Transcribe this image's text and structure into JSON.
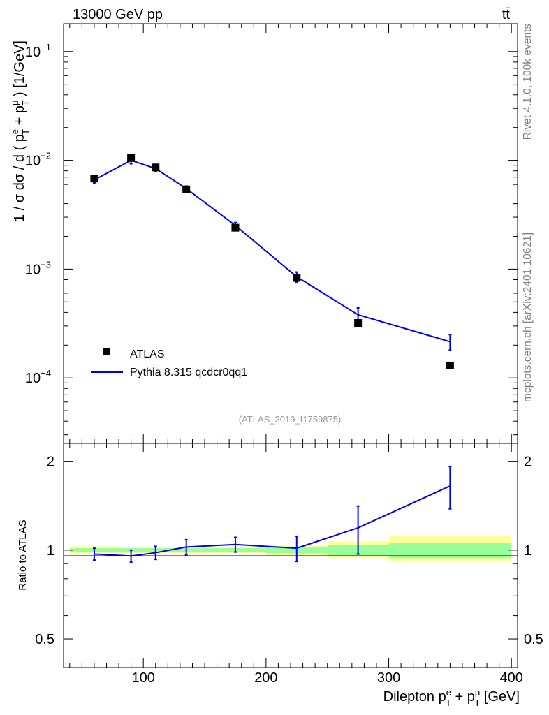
{
  "header": {
    "energy_label": "13000 GeV pp",
    "process_label": "tt̄"
  },
  "side_labels": {
    "rivet": "Rivet 4.1.0,  100k events",
    "mcplots": "mcplots.cern.ch [arXiv:2401.10621]"
  },
  "analysis_id": "(ATLAS_2019_I1759875)",
  "legend": {
    "data_label": "ATLAS",
    "mc_label": "Pythia 8.315 qcdcr0qq1"
  },
  "colors": {
    "data": "#000000",
    "mc": "#0000ee",
    "band_inner": "#99ff99",
    "band_outer": "#ffff99",
    "annotation": "#999999",
    "side_text": "#808080"
  },
  "chart_data": [
    {
      "type": "scatter",
      "panel": "main",
      "title": "",
      "ylabel": "1 / σ  dσ / d ( p_T^e + p_T^μ ) [1/GeV]",
      "yscale": "log",
      "ylim": [
        2.5e-05,
        0.18
      ],
      "xlim": [
        35,
        405
      ],
      "y_ticks": [
        {
          "value": 0.1,
          "base": "10",
          "exp": "−1"
        },
        {
          "value": 0.01,
          "base": "10",
          "exp": "−2"
        },
        {
          "value": 0.001,
          "base": "10",
          "exp": "−3"
        },
        {
          "value": 0.0001,
          "base": "10",
          "exp": "−4"
        }
      ],
      "series": [
        {
          "name": "ATLAS",
          "marker": "square",
          "x": [
            60,
            90,
            110,
            135,
            175,
            225,
            275,
            350
          ],
          "y": [
            0.0068,
            0.0105,
            0.0086,
            0.0054,
            0.0024,
            0.00083,
            0.00032,
            0.00013
          ]
        },
        {
          "name": "Pythia 8.315 qcdcr0qq1",
          "marker": "line",
          "x": [
            60,
            90,
            110,
            135,
            175,
            225,
            275,
            350
          ],
          "y": [
            0.0066,
            0.01,
            0.0084,
            0.0055,
            0.00252,
            0.00085,
            0.00038,
            0.000215
          ],
          "yerr": [
            0.0004,
            0.0007,
            0.0005,
            0.0003,
            0.00016,
            9e-05,
            6e-05,
            3.5e-05
          ]
        }
      ]
    },
    {
      "type": "line",
      "panel": "ratio",
      "ylabel": "Ratio to ATLAS",
      "xlabel": "Dilepton p_T^e + p_T^μ [GeV]",
      "yscale": "log",
      "ylim": [
        0.4,
        2.3
      ],
      "xlim": [
        35,
        405
      ],
      "x_ticks": [
        100,
        200,
        300,
        400
      ],
      "y_ticks": [
        0.5,
        1,
        2
      ],
      "reference_band": {
        "edges": [
          40,
          80,
          100,
          120,
          150,
          200,
          250,
          300,
          400
        ],
        "inner": [
          [
            0.985,
            1.015
          ],
          [
            0.985,
            1.015
          ],
          [
            0.985,
            1.015
          ],
          [
            0.985,
            1.015
          ],
          [
            0.985,
            1.015
          ],
          [
            0.975,
            1.025
          ],
          [
            0.96,
            1.04
          ],
          [
            0.94,
            1.06
          ],
          [
            0.93,
            1.07
          ]
        ],
        "outer": [
          [
            0.97,
            1.03
          ],
          [
            0.975,
            1.025
          ],
          [
            0.975,
            1.025
          ],
          [
            0.975,
            1.025
          ],
          [
            0.975,
            1.025
          ],
          [
            0.96,
            1.04
          ],
          [
            0.94,
            1.07
          ],
          [
            0.915,
            1.115
          ],
          [
            0.89,
            1.18
          ]
        ]
      },
      "series": [
        {
          "name": "Pythia 8.315 qcdcr0qq1",
          "x": [
            60,
            90,
            110,
            135,
            175,
            225,
            275,
            350
          ],
          "y": [
            0.97,
            0.955,
            0.98,
            1.025,
            1.045,
            1.015,
            1.19,
            1.65
          ],
          "yerr": [
            0.045,
            0.045,
            0.05,
            0.06,
            0.06,
            0.1,
            0.22,
            0.27
          ]
        }
      ]
    }
  ]
}
